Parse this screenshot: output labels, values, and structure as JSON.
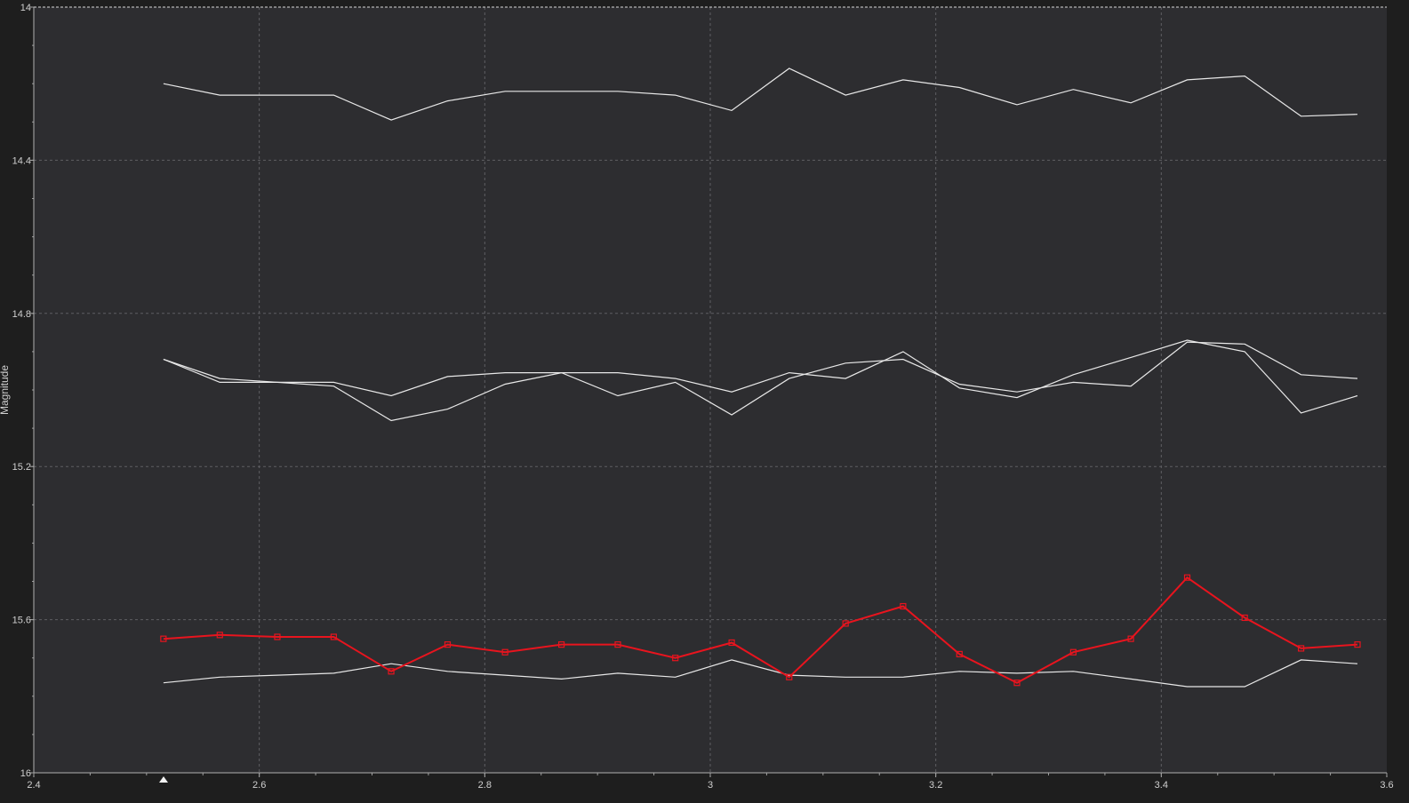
{
  "chart_data": {
    "type": "line",
    "title": "",
    "ylabel": "Magnitude",
    "xlabel": "",
    "xlim": [
      2.4,
      3.6
    ],
    "ylim": [
      14.0,
      16.0
    ],
    "y_inverted": true,
    "grid": true,
    "x_ticks": [
      "2.4",
      "2.6",
      "2.8",
      "3",
      "3.2",
      "3.4",
      "3.6"
    ],
    "y_ticks": [
      "14",
      "14.4",
      "14.8",
      "15.2",
      "15.6",
      "16"
    ],
    "x": [
      2.515,
      2.565,
      2.616,
      2.666,
      2.717,
      2.767,
      2.818,
      2.868,
      2.918,
      2.969,
      3.019,
      3.07,
      3.12,
      3.171,
      3.221,
      3.272,
      3.322,
      3.373,
      3.423,
      3.474,
      3.524,
      3.574
    ],
    "series": [
      {
        "color": "#e8e8e8",
        "marker": "none",
        "values": [
          14.2,
          14.23,
          14.23,
          14.23,
          14.295,
          14.245,
          14.22,
          14.22,
          14.22,
          14.23,
          14.27,
          14.16,
          14.23,
          14.19,
          14.21,
          14.255,
          14.215,
          14.25,
          14.19,
          14.18,
          14.285,
          14.28
        ]
      },
      {
        "color": "#e8e8e8",
        "marker": "none",
        "values": [
          14.92,
          14.97,
          14.98,
          14.99,
          15.08,
          15.05,
          14.985,
          14.955,
          15.015,
          14.98,
          15.065,
          14.97,
          14.93,
          14.92,
          14.985,
          15.005,
          14.98,
          14.99,
          14.875,
          14.88,
          14.96,
          14.97
        ]
      },
      {
        "color": "#e8e8e8",
        "marker": "none",
        "values": [
          14.92,
          14.98,
          14.98,
          14.98,
          15.015,
          14.965,
          14.955,
          14.955,
          14.955,
          14.97,
          15.005,
          14.955,
          14.97,
          14.9,
          14.995,
          15.02,
          14.96,
          14.915,
          14.87,
          14.9,
          15.06,
          15.015
        ]
      },
      {
        "color": "#e8e8e8",
        "marker": "none",
        "values": [
          15.765,
          15.75,
          15.745,
          15.74,
          15.715,
          15.735,
          15.745,
          15.755,
          15.74,
          15.75,
          15.705,
          15.745,
          15.75,
          15.75,
          15.735,
          15.74,
          15.735,
          15.755,
          15.775,
          15.775,
          15.705,
          15.715
        ]
      },
      {
        "color": "#e8141e",
        "marker": "square",
        "values": [
          15.65,
          15.64,
          15.645,
          15.645,
          15.735,
          15.665,
          15.685,
          15.665,
          15.665,
          15.7,
          15.66,
          15.75,
          15.61,
          15.565,
          15.69,
          15.765,
          15.685,
          15.65,
          15.49,
          15.595,
          15.675,
          15.665
        ]
      }
    ]
  }
}
